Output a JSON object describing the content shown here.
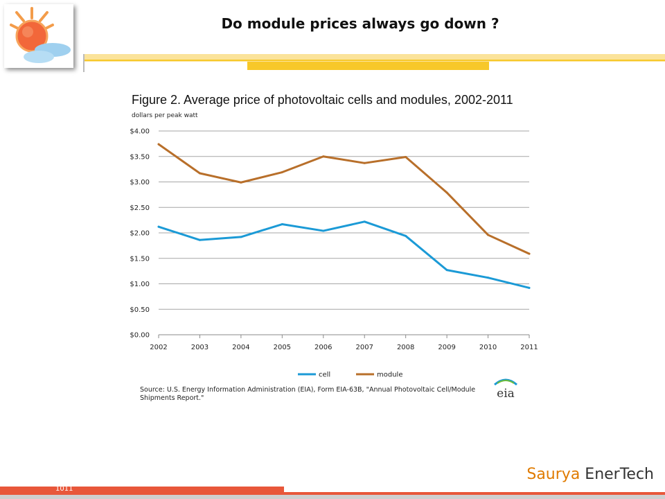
{
  "slide": {
    "title": "Do module prices always go down ?",
    "footer_number": "1011"
  },
  "brand": {
    "part1": "Saurya",
    "part2": "EnerTech"
  },
  "colors": {
    "accent_orange": "#e07b00",
    "header_yellow": "#f7c82a",
    "header_yellow_light": "#fbe39a",
    "footer_red": "#e8573a",
    "cell_line": "#1b9ad6",
    "module_line": "#b86f2a"
  },
  "icons": {
    "logo": "sun-cloud-logo-icon",
    "source_logo": "eia-logo-icon"
  },
  "figure": {
    "title": "Figure 2. Average price of photovoltaic cells and modules, 2002-2011",
    "unit": "dollars per peak watt",
    "source": "Source: U.S. Energy Information Administration (EIA), Form EIA-63B, \"Annual Photovoltaic Cell/Module Shipments Report.\"",
    "source_logo_text": "eia"
  },
  "chart_data": {
    "type": "line",
    "title": "Figure 2. Average price of photovoltaic cells and modules, 2002-2011",
    "ylabel": "dollars per peak watt",
    "xlabel": "",
    "categories": [
      "2002",
      "2003",
      "2004",
      "2005",
      "2006",
      "2007",
      "2008",
      "2009",
      "2010",
      "2011"
    ],
    "series": [
      {
        "name": "cell",
        "color": "#1b9ad6",
        "values": [
          2.12,
          1.86,
          1.92,
          2.17,
          2.04,
          2.22,
          1.94,
          1.27,
          1.12,
          0.92
        ]
      },
      {
        "name": "module",
        "color": "#b86f2a",
        "values": [
          3.74,
          3.17,
          2.99,
          3.19,
          3.5,
          3.37,
          3.49,
          2.79,
          1.96,
          1.59
        ]
      }
    ],
    "ylim": [
      0,
      4
    ],
    "yticks": [
      0,
      0.5,
      1,
      1.5,
      2,
      2.5,
      3,
      3.5,
      4
    ],
    "ytick_labels": [
      "$0.00",
      "$0.50",
      "$1.00",
      "$1.50",
      "$2.00",
      "$2.50",
      "$3.00",
      "$3.50",
      "$4.00"
    ],
    "grid": true,
    "legend_position": "bottom-center"
  }
}
